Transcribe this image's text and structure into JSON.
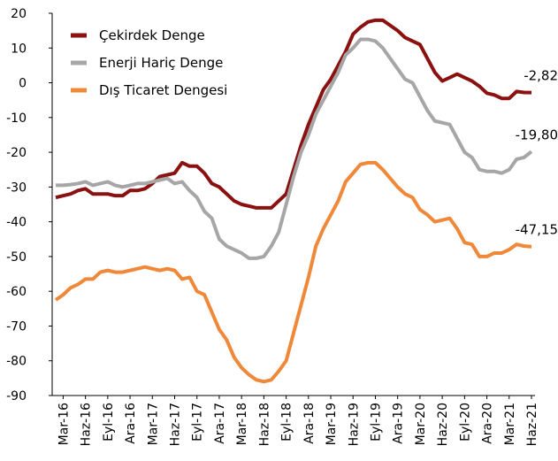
{
  "chart_data": {
    "type": "line",
    "categories": [
      null,
      "Mar-16",
      null,
      null,
      "Haz-16",
      null,
      null,
      "Eyl-16",
      null,
      null,
      "Ara-16",
      null,
      null,
      "Mar-17",
      null,
      null,
      "Haz-17",
      null,
      null,
      "Eyl-17",
      null,
      null,
      "Ara-17",
      null,
      null,
      "Mar-18",
      null,
      null,
      "Haz-18",
      null,
      null,
      "Eyl-18",
      null,
      null,
      "Ara-18",
      null,
      null,
      "Mar-19",
      null,
      null,
      "Haz-19",
      null,
      null,
      "Eyl-19",
      null,
      null,
      "Ara-19",
      null,
      null,
      "Mar-20",
      null,
      null,
      "Haz-20",
      null,
      null,
      "Eyl-20",
      null,
      null,
      "Ara-20",
      null,
      null,
      "Mar-21",
      null,
      null,
      "Haz-21"
    ],
    "series": [
      {
        "name": "Çekirdek Denge",
        "color": "#8b1010",
        "values": [
          -33,
          -32.5,
          -32,
          -31,
          -30.5,
          -32,
          -32,
          -32,
          -32.5,
          -32.5,
          -31,
          -31,
          -30.5,
          -29,
          -27,
          -26.5,
          -26,
          -23,
          -24,
          -24,
          -26,
          -29,
          -30,
          -32,
          -34,
          -35,
          -35.5,
          -36,
          -36,
          -36,
          -34,
          -32,
          -25,
          -18,
          -12,
          -7,
          -2,
          1,
          5,
          9,
          14,
          16,
          17.5,
          18,
          18,
          16.5,
          15,
          13,
          12,
          11,
          7,
          3,
          0.5,
          1.5,
          2.5,
          1.5,
          0.5,
          -1,
          -3,
          -3.5,
          -4.5,
          -4.5,
          -2.5,
          -2.8,
          -2.82
        ],
        "value_labels": [
          null,
          null,
          null,
          null,
          null,
          null,
          null,
          null,
          null,
          null,
          null,
          null,
          null,
          null,
          null,
          null,
          null,
          null,
          null,
          null,
          null,
          null,
          null,
          null,
          null,
          null,
          null,
          null,
          null,
          null,
          null,
          null,
          null,
          null,
          null,
          null,
          null,
          null,
          null,
          null,
          null,
          null,
          null,
          null,
          null,
          null,
          null,
          null,
          null,
          null,
          null,
          null,
          null,
          null,
          null,
          null,
          null,
          null,
          null,
          null,
          null,
          null,
          null,
          null,
          "-2,82"
        ]
      },
      {
        "name": "Enerji Hariç Denge",
        "color": "#a6a6a6",
        "values": [
          -29.5,
          -29.5,
          -29.3,
          -29,
          -28.5,
          -29.5,
          -29,
          -28.5,
          -29.5,
          -30,
          -29.5,
          -29,
          -29,
          -28.5,
          -28,
          -27.5,
          -29,
          -28.5,
          -31,
          -33,
          -37,
          -39,
          -45,
          -47,
          -48,
          -49,
          -50.5,
          -50.5,
          -50,
          -47,
          -43,
          -35,
          -27,
          -20,
          -15,
          -9,
          -5,
          -1,
          3,
          8,
          10,
          12.5,
          12.5,
          12,
          10,
          7,
          4,
          1,
          0,
          -4,
          -8,
          -11,
          -11.5,
          -12,
          -16,
          -20,
          -21.5,
          -25,
          -25.5,
          -25.5,
          -26,
          -25,
          -22,
          -21.5,
          -19.8
        ],
        "value_labels": [
          null,
          null,
          null,
          null,
          null,
          null,
          null,
          null,
          null,
          null,
          null,
          null,
          null,
          null,
          null,
          null,
          null,
          null,
          null,
          null,
          null,
          null,
          null,
          null,
          null,
          null,
          null,
          null,
          null,
          null,
          null,
          null,
          null,
          null,
          null,
          null,
          null,
          null,
          null,
          null,
          null,
          null,
          null,
          null,
          null,
          null,
          null,
          null,
          null,
          null,
          null,
          null,
          null,
          null,
          null,
          null,
          null,
          null,
          null,
          null,
          null,
          null,
          null,
          null,
          "-19,80"
        ]
      },
      {
        "name": "Dış Ticaret Dengesi",
        "color": "#f0883a",
        "values": [
          -62.5,
          -61,
          -59,
          -58,
          -56.5,
          -56.5,
          -54.5,
          -54,
          -54.5,
          -54.5,
          -54,
          -53.5,
          -53,
          -53.5,
          -54,
          -53.5,
          -54,
          -56.5,
          -56,
          -60,
          -61,
          -66,
          -71,
          -74,
          -79,
          -82,
          -84,
          -85.5,
          -86,
          -85.5,
          -83,
          -80,
          -72,
          -64,
          -56,
          -47,
          -42,
          -38,
          -34,
          -28.5,
          -26,
          -23.5,
          -23,
          -23,
          -25,
          -27.5,
          -30,
          -32,
          -33,
          -36.5,
          -38,
          -40,
          -39.5,
          -39,
          -42,
          -46,
          -46.5,
          -50,
          -50,
          -49,
          -49,
          -48,
          -46.5,
          -47,
          -47.15
        ],
        "value_labels": [
          null,
          null,
          null,
          null,
          null,
          null,
          null,
          null,
          null,
          null,
          null,
          null,
          null,
          null,
          null,
          null,
          null,
          null,
          null,
          null,
          null,
          null,
          null,
          null,
          null,
          null,
          null,
          null,
          null,
          null,
          null,
          null,
          null,
          null,
          null,
          null,
          null,
          null,
          null,
          null,
          null,
          null,
          null,
          null,
          null,
          null,
          null,
          null,
          null,
          null,
          null,
          null,
          null,
          null,
          null,
          null,
          null,
          null,
          null,
          null,
          null,
          null,
          null,
          null,
          "-47,15"
        ]
      }
    ],
    "ylim": [
      -90,
      20
    ],
    "yticks": [
      -90,
      -80,
      -70,
      -60,
      -50,
      -40,
      -30,
      -20,
      -10,
      0,
      10,
      20
    ],
    "grid": false,
    "legend": "top-left"
  }
}
